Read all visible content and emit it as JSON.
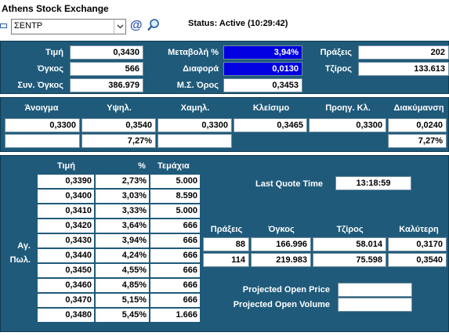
{
  "app": {
    "title": "Athens Stock Exchange"
  },
  "toolbar": {
    "symbol_value": "ΣΕΝΤΡ",
    "status_text": "Status: Active (10:29:42)"
  },
  "summary": {
    "price_label": "Τιμή",
    "price_value": "0,3430",
    "volume_label": "Όγκος",
    "volume_value": "566",
    "total_volume_label": "Συν. Όγκος",
    "total_volume_value": "386.979",
    "change_pct_label": "Μεταβολή %",
    "change_pct_value": "3,94%",
    "difference_label": "Διαφορά",
    "difference_value": "0,0130",
    "avg_label": "Μ.Σ. Όρος",
    "avg_value": "0,3453",
    "trades_label": "Πράξεις",
    "trades_value": "202",
    "turnover_label": "Τζίρος",
    "turnover_value": "133.613"
  },
  "session": {
    "headers": [
      "Άνοιγμα",
      "Υψηλ.",
      "Χαμηλ.",
      "Κλείσιμο",
      "Προηγ. Κλ.",
      "Διακύμανση"
    ],
    "values": [
      "0,3300",
      "0,3540",
      "0,3300",
      "0,3465",
      "0,3300",
      "0,0240"
    ],
    "pct_high": "7,27%",
    "pct_range": "7,27%"
  },
  "depth": {
    "headers": {
      "price": "Τιμή",
      "pct": "%",
      "pieces": "Τεμάχια"
    },
    "buy_label": "Αγ.",
    "sell_label": "Πωλ.",
    "rows": [
      {
        "price": "0,3390",
        "pct": "2,73%",
        "pieces": "5.000"
      },
      {
        "price": "0,3400",
        "pct": "3,03%",
        "pieces": "8.590"
      },
      {
        "price": "0,3410",
        "pct": "3,33%",
        "pieces": "5.000"
      },
      {
        "price": "0,3420",
        "pct": "3,64%",
        "pieces": "666"
      },
      {
        "price": "0,3430",
        "pct": "3,94%",
        "pieces": "666"
      },
      {
        "price": "0,3440",
        "pct": "4,24%",
        "pieces": "666"
      },
      {
        "price": "0,3450",
        "pct": "4,55%",
        "pieces": "666"
      },
      {
        "price": "0,3460",
        "pct": "4,85%",
        "pieces": "666"
      },
      {
        "price": "0,3470",
        "pct": "5,15%",
        "pieces": "666"
      },
      {
        "price": "0,3480",
        "pct": "5,45%",
        "pieces": "1.666"
      }
    ]
  },
  "quote": {
    "last_quote_label": "Last Quote Time",
    "last_quote_value": "13:18:59",
    "headers": [
      "Πράξεις",
      "Όγκος",
      "Τζίρος",
      "Καλύτερη"
    ],
    "buy": [
      "88",
      "166.996",
      "58.014",
      "0,3170"
    ],
    "sell": [
      "114",
      "219.983",
      "75.598",
      "0,3540"
    ],
    "projected_price_label": "Projected Open Price",
    "projected_price_value": "",
    "projected_volume_label": "Projected Open Volume",
    "projected_volume_value": ""
  }
}
